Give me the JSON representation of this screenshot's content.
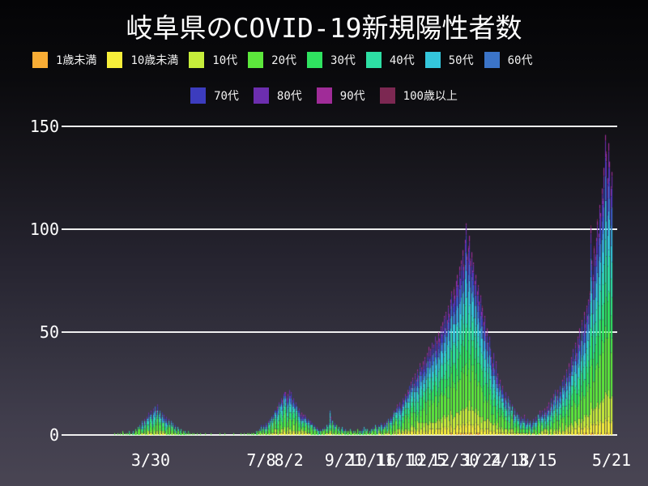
{
  "theme": {
    "background_top": "#040406",
    "background_bottom": "#494553",
    "text_color": "#ffffff",
    "gridline_color": "#efefef"
  },
  "chart_data": {
    "type": "bar",
    "stacked": true,
    "title": "岐阜県のCOVID-19新規陽性者数",
    "xlabel": "",
    "ylabel": "",
    "ylim": [
      0,
      150
    ],
    "grid": "horizontal",
    "legend_position": "top",
    "y_ticks": [
      0,
      50,
      100,
      150
    ],
    "x_tick_labels": [
      "3/30",
      "7/8",
      "8/2",
      "9/21",
      "10/16",
      "11/10",
      "12/5",
      "12/30",
      "1/24",
      "2/18",
      "3/15",
      "5/21"
    ],
    "x_ticks": [
      {
        "label": "3/30",
        "day": 33
      },
      {
        "label": "7/8",
        "day": 133
      },
      {
        "label": "8/2",
        "day": 158
      },
      {
        "label": "9/21",
        "day": 208
      },
      {
        "label": "10/16",
        "day": 233
      },
      {
        "label": "11/10",
        "day": 258
      },
      {
        "label": "12/5",
        "day": 283
      },
      {
        "label": "12/30",
        "day": 308
      },
      {
        "label": "1/24",
        "day": 333
      },
      {
        "label": "2/18",
        "day": 358
      },
      {
        "label": "3/15",
        "day": 383
      },
      {
        "label": "5/21",
        "day": 450
      }
    ],
    "series": [
      {
        "name": "1歳未満",
        "color": "#f9ad35",
        "share": 0.004
      },
      {
        "name": "10歳未満",
        "color": "#f6ee3a",
        "share": 0.05
      },
      {
        "name": "10代",
        "color": "#c6ed3b",
        "share": 0.09
      },
      {
        "name": "20代",
        "color": "#5ce73c",
        "share": 0.22
      },
      {
        "name": "30代",
        "color": "#2fe260",
        "share": 0.15
      },
      {
        "name": "40代",
        "color": "#2ddfa4",
        "share": 0.14
      },
      {
        "name": "50代",
        "color": "#34c6dc",
        "share": 0.13
      },
      {
        "name": "60代",
        "color": "#3b74c8",
        "share": 0.08
      },
      {
        "name": "70代",
        "color": "#3c3cbe",
        "share": 0.07
      },
      {
        "name": "80代",
        "color": "#6c2eae",
        "share": 0.05
      },
      {
        "name": "90代",
        "color": "#a02c98",
        "share": 0.025
      },
      {
        "name": "100歳以上",
        "color": "#7c2852",
        "share": 0.003
      }
    ],
    "legend_rows": [
      [
        0,
        1,
        2,
        3,
        4,
        5,
        6,
        7
      ],
      [
        8,
        9,
        10,
        11
      ]
    ],
    "axis_start_label_day_zero": "2/26",
    "daily_totals": [
      1,
      0,
      0,
      1,
      0,
      1,
      0,
      2,
      1,
      0,
      1,
      0,
      1,
      2,
      1,
      0,
      1,
      2,
      1,
      3,
      2,
      4,
      3,
      5,
      4,
      6,
      5,
      8,
      7,
      9,
      8,
      11,
      10,
      12,
      9,
      13,
      11,
      14,
      12,
      15,
      10,
      12,
      9,
      11,
      8,
      10,
      7,
      9,
      6,
      8,
      5,
      7,
      4,
      6,
      3,
      5,
      2,
      4,
      3,
      2,
      3,
      1,
      2,
      1,
      2,
      1,
      0,
      2,
      1,
      0,
      1,
      0,
      1,
      0,
      0,
      1,
      0,
      0,
      1,
      0,
      0,
      0,
      1,
      0,
      0,
      0,
      0,
      1,
      0,
      0,
      0,
      0,
      0,
      0,
      0,
      1,
      0,
      0,
      0,
      0,
      1,
      0,
      0,
      0,
      0,
      0,
      0,
      0,
      1,
      0,
      0,
      0,
      0,
      0,
      1,
      0,
      0,
      1,
      0,
      0,
      1,
      0,
      1,
      0,
      1,
      1,
      1,
      0,
      2,
      1,
      2,
      3,
      2,
      4,
      3,
      5,
      4,
      6,
      5,
      7,
      6,
      8,
      9,
      7,
      10,
      12,
      11,
      14,
      13,
      16,
      15,
      18,
      17,
      20,
      19,
      21,
      18,
      20,
      22,
      19,
      21,
      17,
      18,
      15,
      16,
      14,
      12,
      13,
      10,
      11,
      9,
      10,
      8,
      9,
      7,
      8,
      6,
      7,
      5,
      6,
      4,
      5,
      3,
      4,
      3,
      2,
      3,
      2,
      3,
      2,
      4,
      3,
      5,
      4,
      6,
      12,
      9,
      7,
      5,
      6,
      4,
      5,
      3,
      4,
      2,
      3,
      4,
      3,
      2,
      3,
      2,
      1,
      2,
      3,
      2,
      1,
      2,
      1,
      2,
      1,
      3,
      2,
      1,
      2,
      3,
      2,
      4,
      3,
      2,
      3,
      1,
      2,
      3,
      2,
      4,
      3,
      5,
      4,
      3,
      5,
      4,
      6,
      5,
      4,
      6,
      5,
      7,
      6,
      8,
      7,
      9,
      8,
      10,
      12,
      11,
      13,
      12,
      14,
      16,
      13,
      15,
      18,
      17,
      20,
      19,
      22,
      21,
      24,
      26,
      23,
      28,
      25,
      30,
      27,
      32,
      29,
      35,
      31,
      33,
      36,
      32,
      38,
      35,
      40,
      43,
      37,
      42,
      45,
      39,
      44,
      48,
      41,
      46,
      50,
      47,
      53,
      49,
      55,
      58,
      52,
      60,
      56,
      63,
      59,
      66,
      70,
      64,
      72,
      68,
      75,
      78,
      73,
      82,
      76,
      85,
      90,
      83,
      95,
      103,
      88,
      92,
      97,
      86,
      89,
      80,
      84,
      75,
      78,
      70,
      73,
      65,
      68,
      60,
      63,
      55,
      58,
      50,
      52,
      45,
      48,
      42,
      38,
      35,
      40,
      32,
      36,
      28,
      30,
      25,
      27,
      22,
      24,
      20,
      18,
      21,
      16,
      19,
      14,
      17,
      12,
      15,
      10,
      13,
      9,
      11,
      8,
      10,
      7,
      9,
      8,
      6,
      9,
      7,
      5,
      8,
      6,
      7,
      5,
      6,
      8,
      6,
      9,
      7,
      10,
      8,
      11,
      9,
      12,
      10,
      13,
      11,
      14,
      12,
      16,
      13,
      18,
      15,
      20,
      17,
      22,
      19,
      22,
      18,
      24,
      21,
      27,
      23,
      29,
      25,
      32,
      28,
      35,
      30,
      38,
      34,
      42,
      37,
      45,
      40,
      48,
      44,
      52,
      46,
      56,
      50,
      60,
      54,
      63,
      58,
      66,
      70,
      102,
      85,
      78,
      92,
      88,
      96,
      105,
      98,
      112,
      108,
      120,
      115,
      130,
      146,
      138,
      125,
      142,
      133,
      121,
      128
    ]
  }
}
